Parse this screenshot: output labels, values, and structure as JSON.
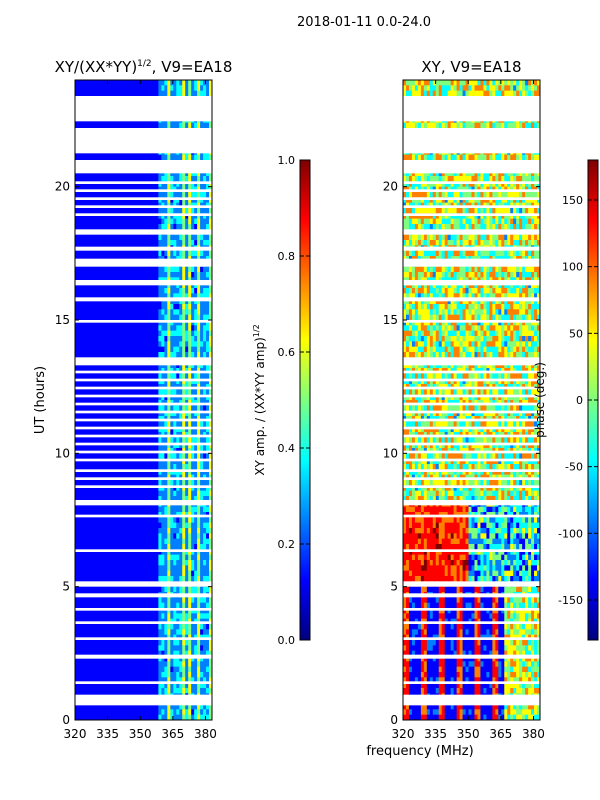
{
  "suptitle": "2018-01-11 0.0-24.0",
  "shared_xlabel": "frequency (MHz)",
  "colors": {
    "jet": [
      "#00007f",
      "#0000ff",
      "#007fff",
      "#00ffff",
      "#7fff7f",
      "#ffff00",
      "#ff7f00",
      "#ff0000",
      "#7f0000"
    ],
    "gap": "#ffffff",
    "axis": "#000000"
  },
  "chart_data": [
    {
      "type": "heatmap",
      "title": "XY/(XX*YY)",
      "title_exponent": "1/2",
      "title_suffix": ", V9=EA18",
      "xlabel": "",
      "ylabel": "UT (hours)",
      "xlim": [
        320,
        383
      ],
      "ylim": [
        0,
        24
      ],
      "xticks": [
        "320",
        "335",
        "350",
        "365",
        "380"
      ],
      "yticks": [
        "0",
        "5",
        "10",
        "15",
        "20"
      ],
      "xtick_values": [
        320,
        335,
        350,
        365,
        380
      ],
      "ytick_values": [
        0,
        5,
        10,
        15,
        20
      ],
      "gaps_ut": [
        [
          0.55,
          0.95
        ],
        [
          1.35,
          1.45
        ],
        [
          2.3,
          2.45
        ],
        [
          3.0,
          3.1
        ],
        [
          3.6,
          3.7
        ],
        [
          4.1,
          4.2
        ],
        [
          4.6,
          4.75
        ],
        [
          5.0,
          5.2
        ],
        [
          6.3,
          6.4
        ],
        [
          7.6,
          7.7
        ],
        [
          8.05,
          8.25
        ],
        [
          8.7,
          8.8
        ],
        [
          9.0,
          9.1
        ],
        [
          9.3,
          9.4
        ],
        [
          9.7,
          9.8
        ],
        [
          10.0,
          10.1
        ],
        [
          10.3,
          10.4
        ],
        [
          10.6,
          10.7
        ],
        [
          10.9,
          11.0
        ],
        [
          11.2,
          11.3
        ],
        [
          11.5,
          11.6
        ],
        [
          11.8,
          11.9
        ],
        [
          12.1,
          12.2
        ],
        [
          12.4,
          12.5
        ],
        [
          12.7,
          12.8
        ],
        [
          13.0,
          13.1
        ],
        [
          13.3,
          13.6
        ],
        [
          14.9,
          15.0
        ],
        [
          15.7,
          15.85
        ],
        [
          16.3,
          16.5
        ],
        [
          17.0,
          17.3
        ],
        [
          17.6,
          17.75
        ],
        [
          18.2,
          18.4
        ],
        [
          18.9,
          19.0
        ],
        [
          19.2,
          19.3
        ],
        [
          19.5,
          19.6
        ],
        [
          19.8,
          19.9
        ],
        [
          20.1,
          20.2
        ],
        [
          20.5,
          21.0
        ],
        [
          21.25,
          22.2
        ],
        [
          22.45,
          23.4
        ]
      ],
      "colorbar": {
        "label": "XY amp. / (XX*YY amp)",
        "label_exponent": "1/2",
        "ticks": [
          "0.0",
          "0.2",
          "0.4",
          "0.6",
          "0.8",
          "1.0"
        ],
        "tick_values": [
          0.0,
          0.2,
          0.4,
          0.6,
          0.8,
          1.0
        ],
        "range": [
          0,
          1
        ]
      }
    },
    {
      "type": "heatmap",
      "title": "XY, V9=EA18",
      "xlabel": "frequency (MHz)",
      "ylabel": "",
      "xlim": [
        320,
        383
      ],
      "ylim": [
        0,
        24
      ],
      "xticks": [
        "320",
        "335",
        "350",
        "365",
        "380"
      ],
      "yticks": [
        "0",
        "5",
        "10",
        "15",
        "20"
      ],
      "xtick_values": [
        320,
        335,
        350,
        365,
        380
      ],
      "ytick_values": [
        0,
        5,
        10,
        15,
        20
      ],
      "gaps_ut": [
        [
          0.55,
          0.95
        ],
        [
          1.35,
          1.45
        ],
        [
          2.3,
          2.45
        ],
        [
          3.0,
          3.1
        ],
        [
          3.6,
          3.7
        ],
        [
          4.1,
          4.2
        ],
        [
          4.6,
          4.75
        ],
        [
          5.0,
          5.2
        ],
        [
          6.3,
          6.4
        ],
        [
          7.6,
          7.7
        ],
        [
          8.05,
          8.25
        ],
        [
          8.7,
          8.8
        ],
        [
          9.0,
          9.1
        ],
        [
          9.3,
          9.4
        ],
        [
          9.7,
          9.8
        ],
        [
          10.0,
          10.1
        ],
        [
          10.3,
          10.4
        ],
        [
          10.6,
          10.7
        ],
        [
          10.9,
          11.0
        ],
        [
          11.2,
          11.3
        ],
        [
          11.5,
          11.6
        ],
        [
          11.8,
          11.9
        ],
        [
          12.1,
          12.2
        ],
        [
          12.4,
          12.5
        ],
        [
          12.7,
          12.8
        ],
        [
          13.0,
          13.1
        ],
        [
          13.3,
          13.6
        ],
        [
          14.9,
          15.0
        ],
        [
          15.7,
          15.85
        ],
        [
          16.3,
          16.5
        ],
        [
          17.0,
          17.3
        ],
        [
          17.6,
          17.75
        ],
        [
          18.2,
          18.4
        ],
        [
          18.9,
          19.0
        ],
        [
          19.2,
          19.3
        ],
        [
          19.5,
          19.6
        ],
        [
          19.8,
          19.9
        ],
        [
          20.1,
          20.2
        ],
        [
          20.5,
          21.0
        ],
        [
          21.25,
          22.2
        ],
        [
          22.45,
          23.4
        ]
      ],
      "colorbar": {
        "label": "phase (deg.)",
        "ticks": [
          "-150",
          "-100",
          "-50",
          "0",
          "50",
          "100",
          "150"
        ],
        "tick_values": [
          -150,
          -100,
          -50,
          0,
          50,
          100,
          150
        ],
        "range": [
          -180,
          180
        ]
      }
    }
  ]
}
